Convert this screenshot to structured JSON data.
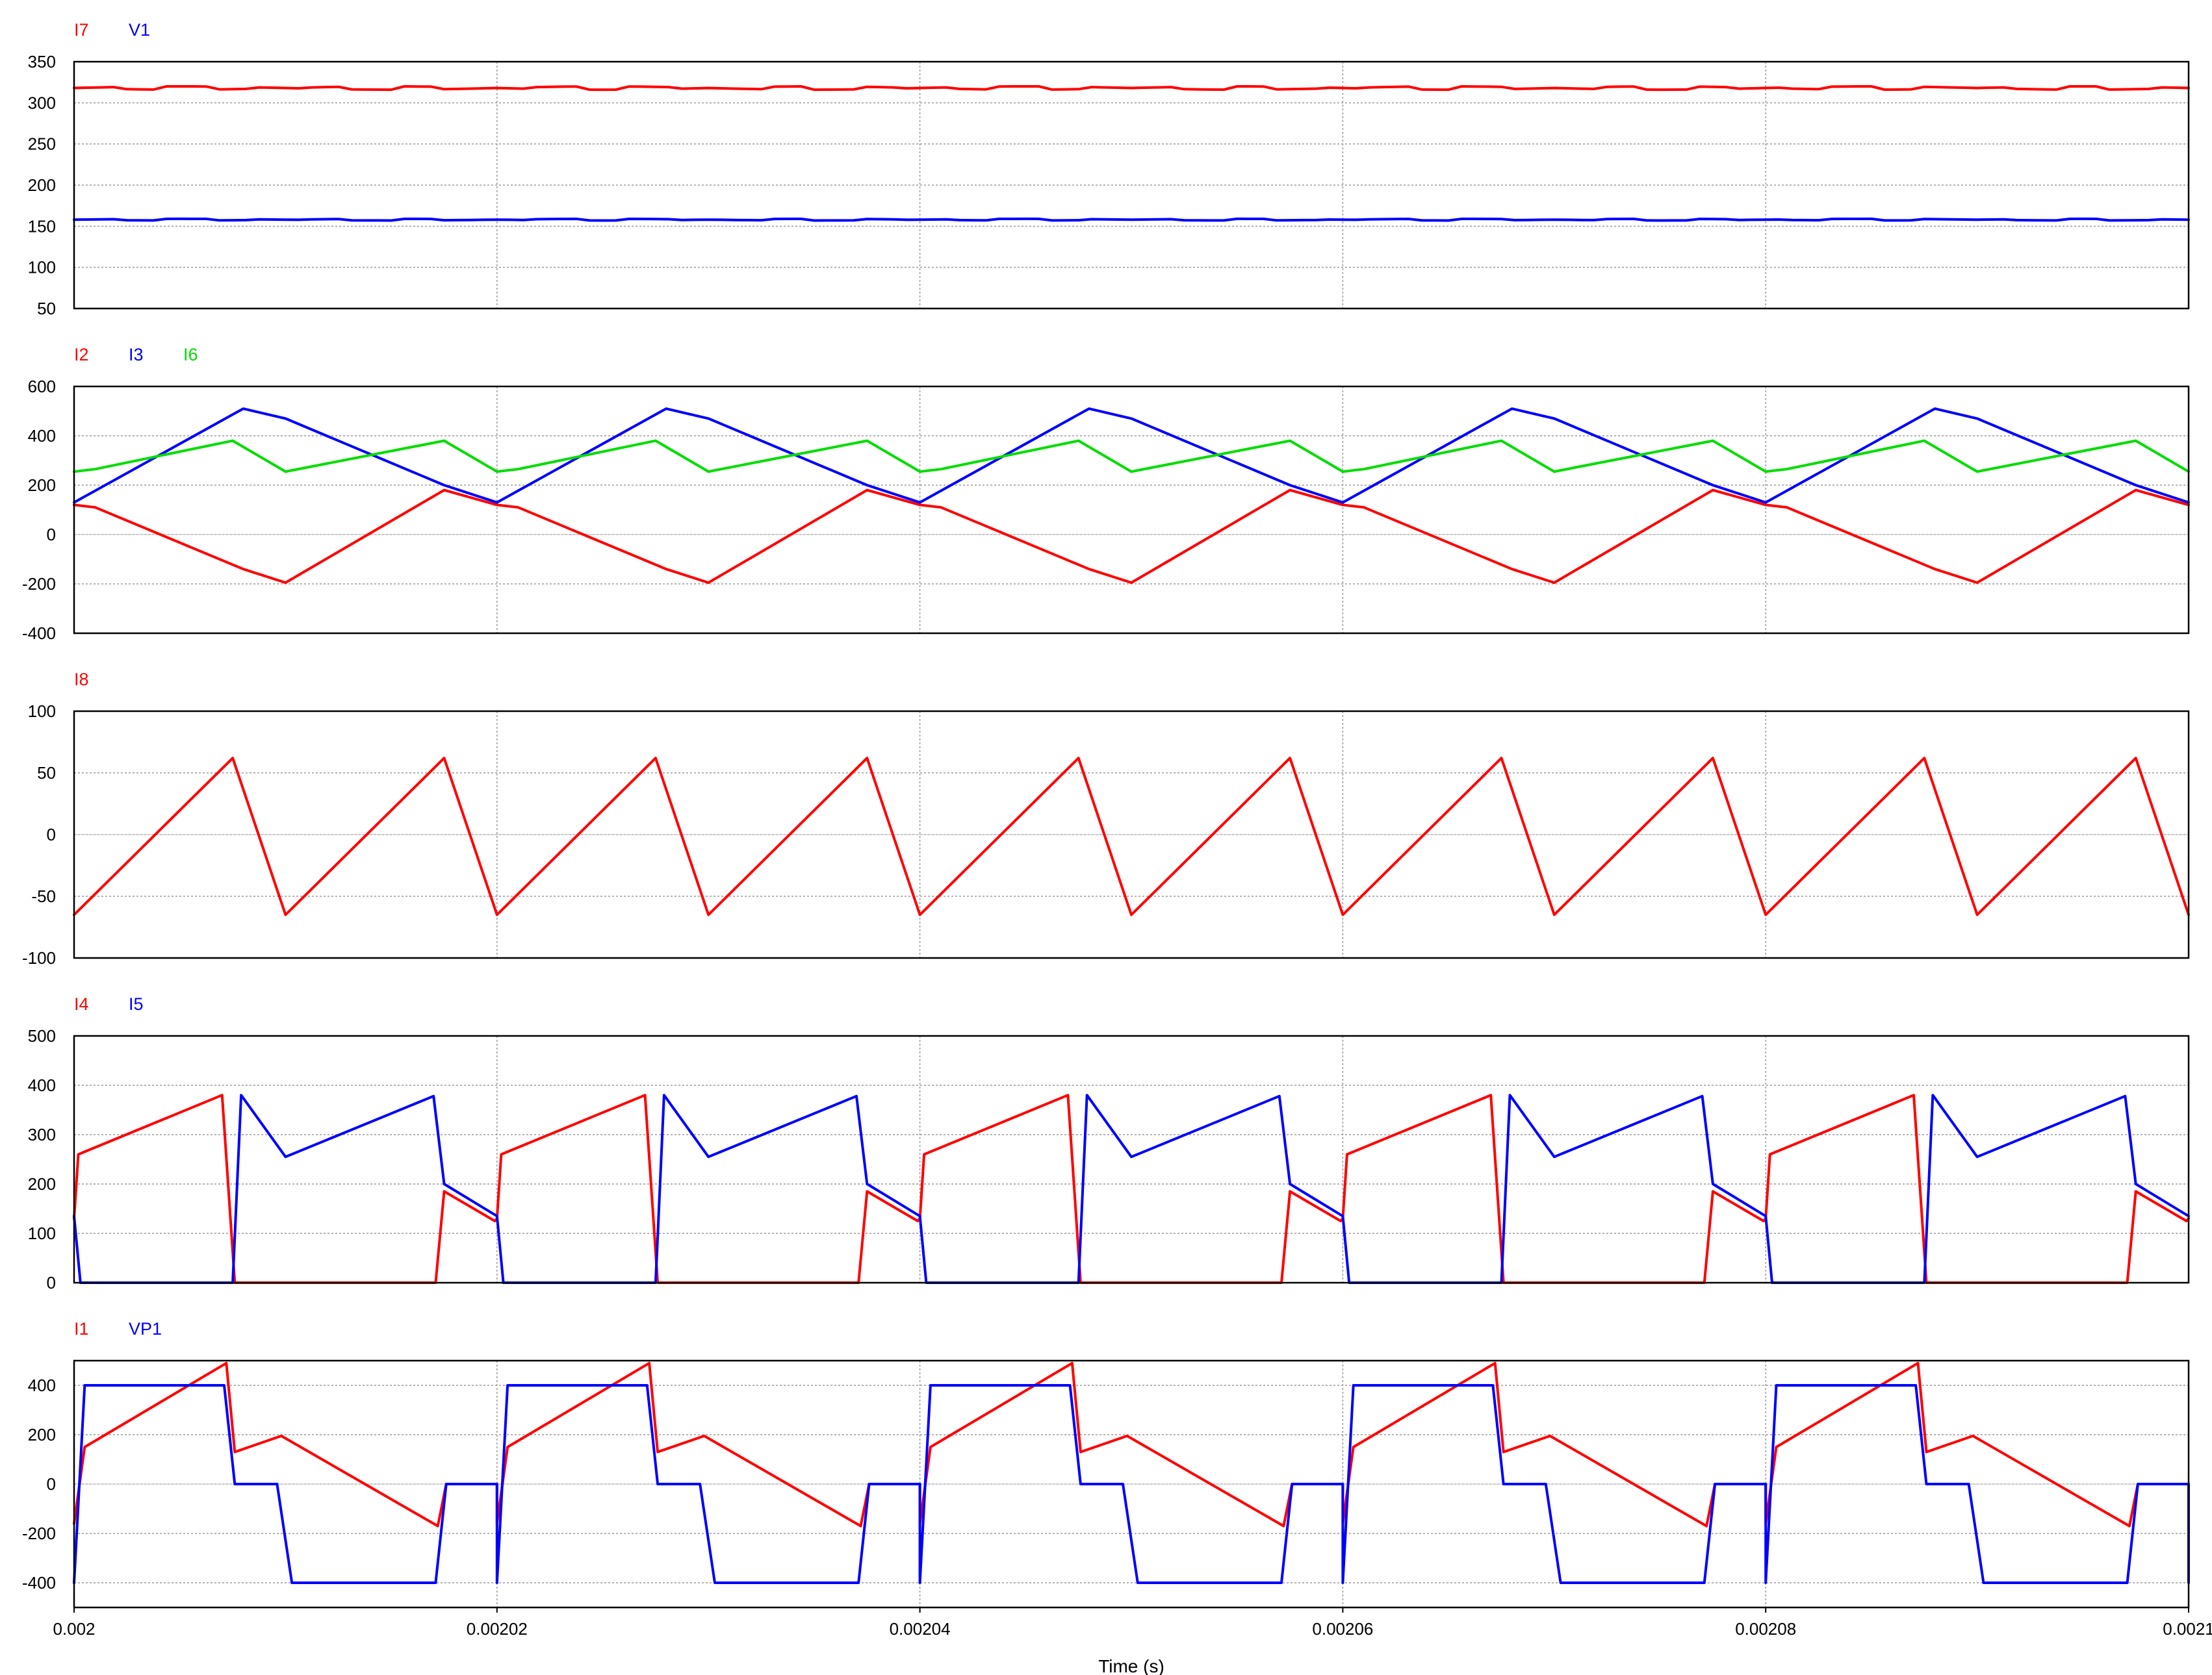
{
  "chart_data": [
    {
      "type": "line",
      "ylim": [
        50,
        350
      ],
      "yticks": [
        50,
        100,
        150,
        200,
        250,
        300,
        350
      ],
      "series": [
        {
          "name": "I7",
          "color": "#ff0000",
          "waveform": "noisy_constant",
          "level": 318,
          "ripple": 2
        },
        {
          "name": "V1",
          "color": "#0000ff",
          "waveform": "noisy_constant",
          "level": 158,
          "ripple": 1
        }
      ]
    },
    {
      "type": "line",
      "ylim": [
        -400,
        600
      ],
      "yticks": [
        -400,
        -200,
        0,
        200,
        400,
        600
      ],
      "series": [
        {
          "name": "I2",
          "color": "#ff0000",
          "waveform": "periodic",
          "points": [
            [
              0.0,
              120
            ],
            [
              1e-06,
              110
            ],
            [
              8e-06,
              -140
            ],
            [
              1e-05,
              -195
            ],
            [
              1.75e-05,
              180
            ],
            [
              2e-05,
              120
            ]
          ]
        },
        {
          "name": "I3",
          "color": "#0000ff",
          "waveform": "periodic",
          "points": [
            [
              0.0,
              130
            ],
            [
              8e-06,
              510
            ],
            [
              1e-05,
              470
            ],
            [
              1.75e-05,
              200
            ],
            [
              2e-05,
              130
            ]
          ]
        },
        {
          "name": "I6",
          "color": "#00dd00",
          "waveform": "periodic",
          "points": [
            [
              0.0,
              255
            ],
            [
              1e-06,
              265
            ],
            [
              7.5e-06,
              380
            ],
            [
              1e-05,
              255
            ],
            [
              1.75e-05,
              380
            ],
            [
              2e-05,
              255
            ]
          ]
        }
      ]
    },
    {
      "type": "line",
      "ylim": [
        -100,
        100
      ],
      "yticks": [
        -100,
        -50,
        0,
        50,
        100
      ],
      "series": [
        {
          "name": "I8",
          "color": "#ff0000",
          "waveform": "periodic",
          "points": [
            [
              0.0,
              -65
            ],
            [
              7.5e-06,
              62
            ],
            [
              1e-05,
              -65
            ],
            [
              1.75e-05,
              62
            ],
            [
              2e-05,
              -65
            ]
          ]
        }
      ]
    },
    {
      "type": "line",
      "ylim": [
        0,
        500
      ],
      "yticks": [
        0,
        100,
        200,
        300,
        400,
        500
      ],
      "series": [
        {
          "name": "I4",
          "color": "#ff0000",
          "waveform": "periodic",
          "points": [
            [
              0.0,
              130
            ],
            [
              2e-07,
              260
            ],
            [
              7e-06,
              380
            ],
            [
              7.6e-06,
              0
            ],
            [
              1.71e-05,
              0
            ],
            [
              1.75e-05,
              185
            ],
            [
              1.99e-05,
              125
            ],
            [
              2e-05,
              130
            ]
          ]
        },
        {
          "name": "I5",
          "color": "#0000ff",
          "waveform": "periodic",
          "points": [
            [
              0.0,
              135
            ],
            [
              3e-07,
              0
            ],
            [
              7.5e-06,
              0
            ],
            [
              7.9e-06,
              380
            ],
            [
              1e-05,
              255
            ],
            [
              1.7e-05,
              378
            ],
            [
              1.75e-05,
              200
            ],
            [
              2e-05,
              135
            ]
          ]
        }
      ]
    },
    {
      "type": "line",
      "ylim": [
        -500,
        500
      ],
      "yticks": [
        -400,
        -200,
        0,
        200,
        400
      ],
      "series": [
        {
          "name": "I1",
          "color": "#ff0000",
          "waveform": "periodic",
          "points": [
            [
              0.0,
              -160
            ],
            [
              5e-07,
              150
            ],
            [
              7.2e-06,
              490
            ],
            [
              7.6e-06,
              130
            ],
            [
              9.8e-06,
              195
            ],
            [
              1.72e-05,
              -170
            ],
            [
              1.76e-05,
              0
            ],
            [
              2e-05,
              0
            ]
          ]
        },
        {
          "name": "VP1",
          "color": "#0000ff",
          "waveform": "periodic",
          "points": [
            [
              0.0,
              -400
            ],
            [
              5e-07,
              400
            ],
            [
              7.1e-06,
              400
            ],
            [
              7.6e-06,
              0
            ],
            [
              9.6e-06,
              0
            ],
            [
              1.03e-05,
              -400
            ],
            [
              1.71e-05,
              -400
            ],
            [
              1.76e-05,
              0
            ],
            [
              2e-05,
              0
            ]
          ]
        }
      ]
    }
  ],
  "x_axis": {
    "label": "Time (s)",
    "range": [
      0.002,
      0.0021
    ],
    "ticks": [
      {
        "value": 0.002,
        "label": "0.002"
      },
      {
        "value": 0.00202,
        "label": "0.00202"
      },
      {
        "value": 0.00204,
        "label": "0.00204"
      },
      {
        "value": 0.00206,
        "label": "0.00206"
      },
      {
        "value": 0.00208,
        "label": "0.00208"
      },
      {
        "value": 0.0021,
        "label": "0.0021"
      }
    ],
    "period": 2e-05
  }
}
